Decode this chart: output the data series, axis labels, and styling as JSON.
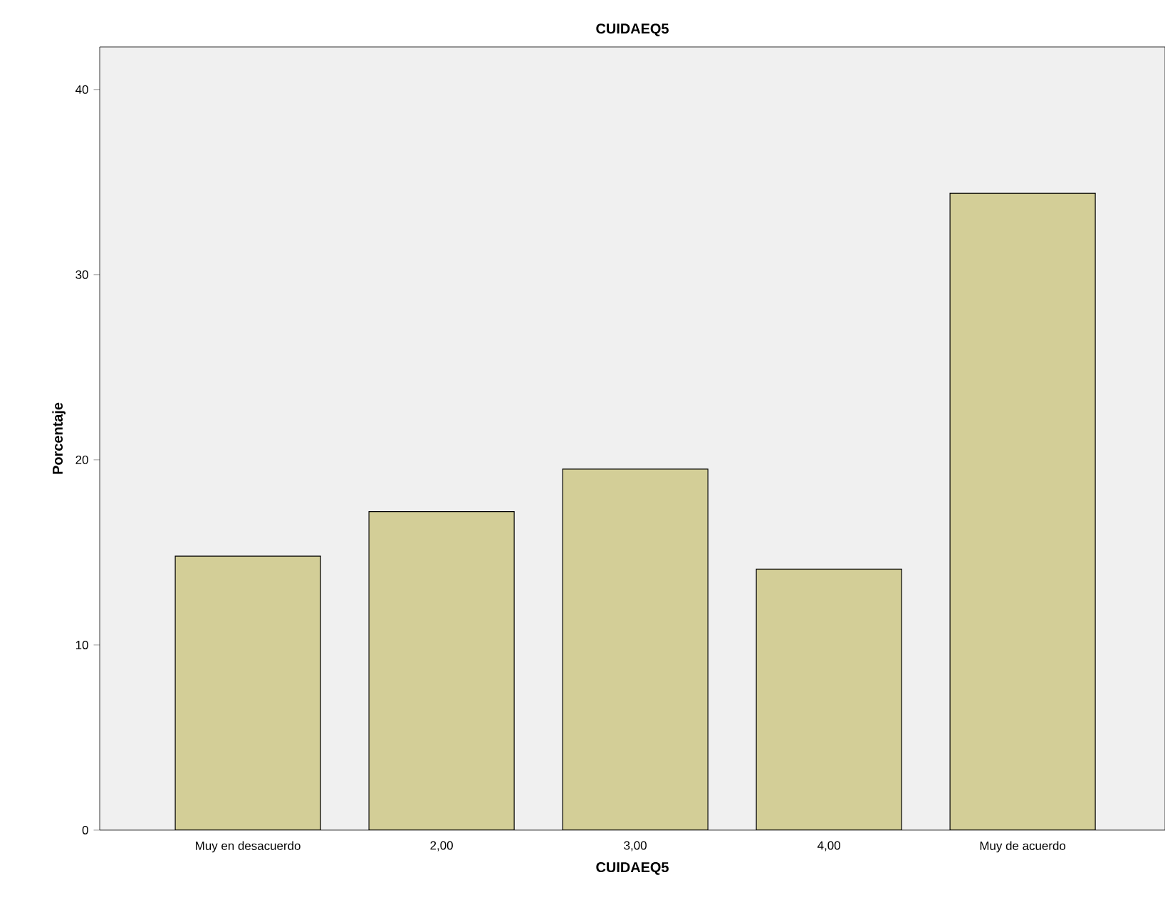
{
  "chart_data": {
    "type": "bar",
    "title": "CUIDAEQ5",
    "xlabel": "CUIDAEQ5",
    "ylabel": "Porcentaje",
    "categories": [
      "Muy en desacuerdo",
      "2,00",
      "3,00",
      "4,00",
      "Muy de acuerdo"
    ],
    "values": [
      14.8,
      17.2,
      19.5,
      14.1,
      34.4
    ],
    "color": "#d3ce97",
    "ylim": [
      0,
      42.3
    ],
    "yticks": [
      0,
      10,
      20,
      30,
      40
    ],
    "grid": false
  }
}
